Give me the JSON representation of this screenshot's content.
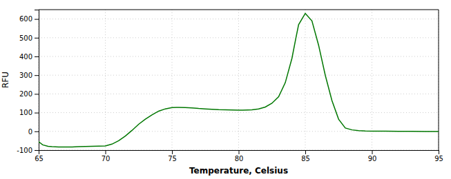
{
  "chart_data": {
    "type": "line",
    "xlabel": "Temperature, Celsius",
    "ylabel": "RFU",
    "x": [
      65.0,
      65.3,
      65.7,
      66.0,
      66.5,
      67.0,
      67.5,
      68.0,
      68.5,
      69.0,
      69.5,
      70.0,
      70.5,
      71.0,
      71.5,
      72.0,
      72.5,
      73.0,
      73.5,
      74.0,
      74.5,
      75.0,
      75.5,
      76.0,
      76.5,
      77.0,
      77.5,
      78.0,
      78.5,
      79.0,
      79.5,
      80.0,
      80.3,
      80.7,
      81.0,
      81.5,
      82.0,
      82.5,
      83.0,
      83.5,
      84.0,
      84.3,
      84.5,
      85.0,
      85.5,
      86.0,
      86.5,
      87.0,
      87.5,
      88.0,
      88.5,
      89.0,
      89.5,
      90.0,
      91.0,
      92.0,
      93.0,
      94.0,
      95.0
    ],
    "values": [
      -55,
      -72,
      -80,
      -82,
      -83,
      -83,
      -83,
      -82,
      -81,
      -80,
      -79,
      -78,
      -68,
      -50,
      -25,
      5,
      38,
      65,
      88,
      108,
      120,
      127,
      128,
      127,
      125,
      122,
      120,
      118,
      116,
      115,
      114,
      113,
      113,
      114,
      115,
      120,
      130,
      150,
      185,
      260,
      390,
      500,
      570,
      630,
      590,
      460,
      300,
      165,
      65,
      18,
      8,
      4,
      2,
      1,
      1,
      0,
      0,
      -1,
      -1
    ],
    "color": "#007700",
    "xlim": [
      65,
      95
    ],
    "ylim": [
      -100,
      650
    ],
    "xticks": [
      65,
      70,
      75,
      80,
      85,
      90,
      95
    ],
    "yticks": [
      -100,
      0,
      100,
      200,
      300,
      400,
      500,
      600
    ],
    "grid": true
  }
}
